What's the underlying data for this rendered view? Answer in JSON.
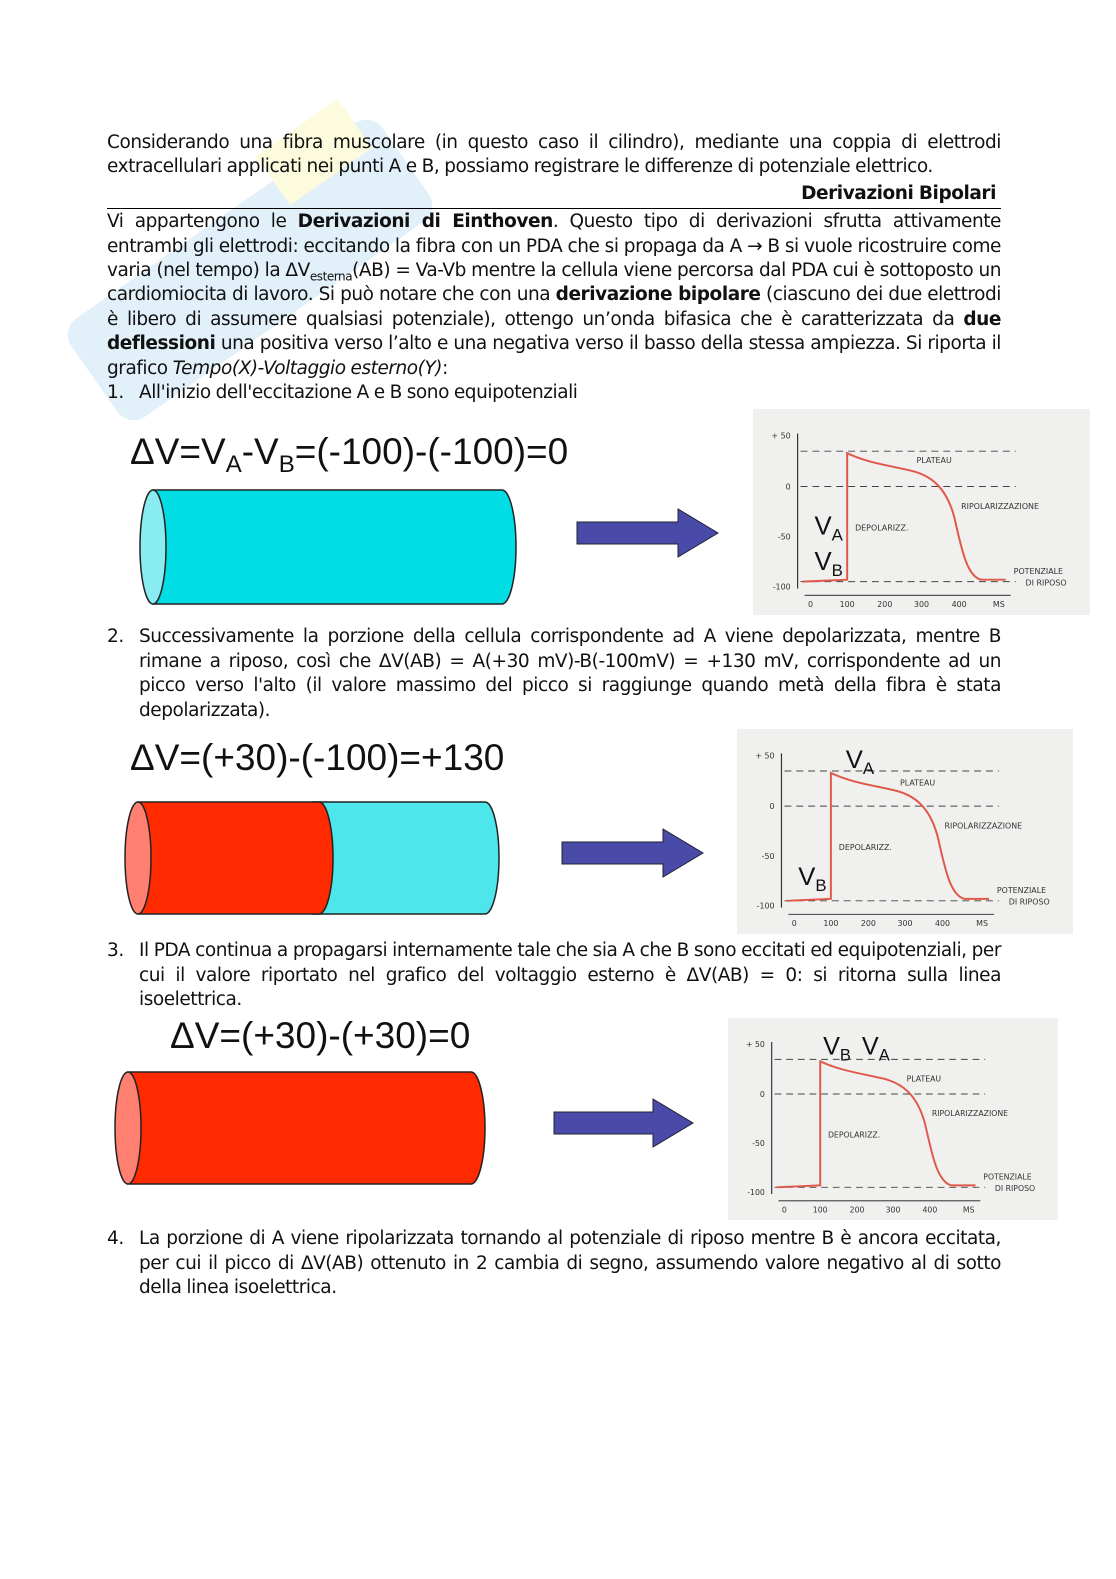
{
  "intro": "Considerando una fibra muscolare (in questo caso il cilindro), mediante una coppia di elettrodi extracellulari applicati nei punti A e B, possiamo registrare le differenze di potenziale elettrico.",
  "section_title": "Derivazioni Bipolari",
  "para": {
    "p1": "Vi appartengono le ",
    "b1": "Derivazioni di Einthoven",
    "p2": ". Questo tipo di derivazioni sfrutta attivamente entrambi gli elettrodi: eccitando la fibra con un PDA che si propaga da A → B si vuole ricostruire come varia (nel tempo) la ΔV",
    "sub": "esterna",
    "p3": "(AB) = Va-Vb mentre la cellula viene percorsa dal PDA cui è sottoposto un cardiomiocita di lavoro. Si può notare che con una ",
    "b2": "derivazione bipolare",
    "p4": " (ciascuno dei due elettrodi è libero di assumere qualsiasi potenziale), ottengo un’onda bifasica che è caratterizzata da ",
    "b3": "due deflessioni",
    "p5": " una positiva verso l’alto e una negativa verso il basso della stessa ampiezza.  Si riporta il grafico ",
    "i1": "Tempo(X)-Voltaggio esterno(Y)",
    "p6": ":"
  },
  "items": [
    {
      "num": "1.",
      "text": "All'inizio dell'eccitazione A e B sono equipotenziali"
    },
    {
      "num": "2.",
      "text": "Successivamente la porzione della cellula corrispondente ad A viene depolarizzata, mentre B rimane a riposo, così che ΔV(AB) = A(+30 mV)-B(-100mV) = +130 mV, corrispondente ad un picco verso l'alto (il valore massimo del picco si raggiunge quando metà della fibra è stata depolarizzata)."
    },
    {
      "num": "3.",
      "text": "Il PDA continua a propagarsi internamente tale che sia A che B sono eccitati ed equipotenziali, per cui il valore riportato nel grafico del voltaggio esterno è ΔV(AB) = 0: si ritorna sulla linea isoelettrica."
    },
    {
      "num": "4.",
      "text": "La porzione di A viene ripolarizzata tornando al potenziale di riposo mentre B è ancora eccitata, per cui il picco di ΔV(AB) ottenuto in 2 cambia di segno, assumendo valore negativo al di sotto della linea isoelettrica."
    }
  ],
  "formulas": [
    {
      "a": "ΔV=V",
      "s1": "A",
      "b": "-V",
      "s2": "B",
      "c": "=(-100)-(-100)=0"
    },
    {
      "text": "ΔV=(+30)-(-100)=+130"
    },
    {
      "text": "ΔV=(+30)-(+30)=0"
    }
  ],
  "colors": {
    "excited": "#ff2a00",
    "excited_cap": "#ff8070",
    "rest1": "#00dde4",
    "rest1_cap": "#88ecf0",
    "rest2": "#4de6ea",
    "arrow": "#4a4aa8",
    "curve": "#e0584a"
  },
  "chart_labels": {
    "y_ticks": [
      "+ 50",
      "0",
      "-50",
      "-100"
    ],
    "x_ticks": [
      "0",
      "100",
      "200",
      "300",
      "400",
      "MS"
    ],
    "plateau": "PLATEAU",
    "ripol": "RIPOLARIZZAZIONE",
    "depol": "DEPOLARIZZ.",
    "rest1": "POTENZIALE",
    "rest2": "DI RIPOSO",
    "va": "V",
    "va_sub": "A",
    "vb": "V",
    "vb_sub": "B"
  }
}
